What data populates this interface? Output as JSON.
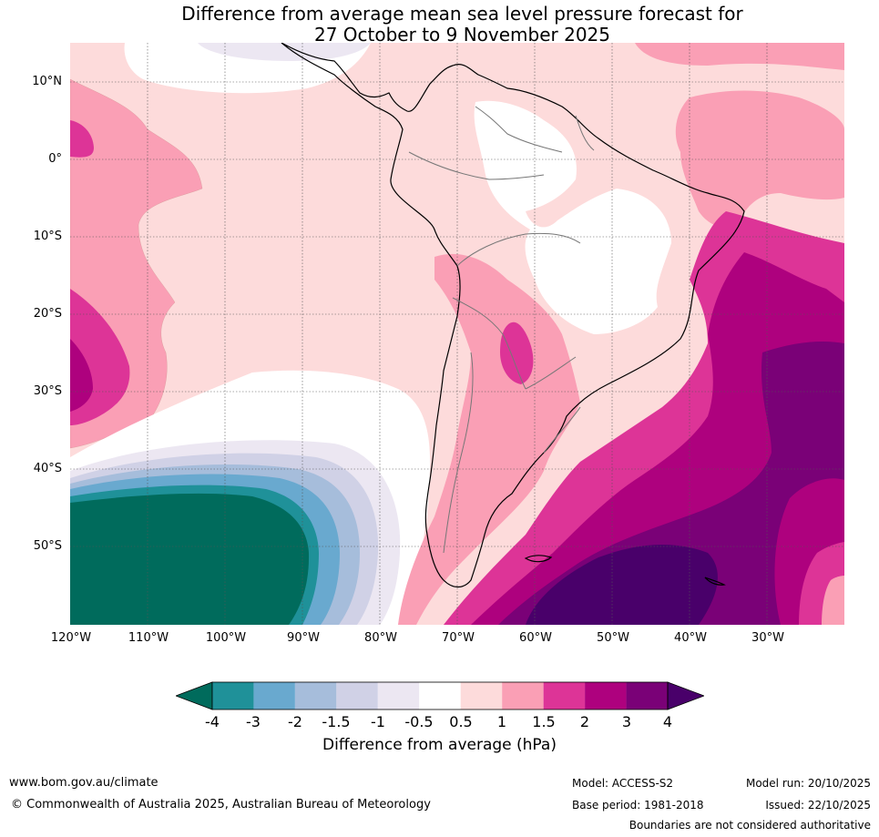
{
  "title": {
    "line1": "Difference from average mean sea level pressure forecast for",
    "line2": "27 October to 9 November 2025"
  },
  "map": {
    "latitude_labels": [
      "10°N",
      "0°",
      "10°S",
      "20°S",
      "30°S",
      "40°S",
      "50°S"
    ],
    "longitude_labels": [
      "120°W",
      "110°W",
      "100°W",
      "90°W",
      "80°W",
      "70°W",
      "60°W",
      "50°W",
      "40°W",
      "30°W"
    ]
  },
  "colorbar": {
    "ticks": [
      "-4",
      "-3",
      "-2",
      "-1.5",
      "-1",
      "-0.5",
      "0.5",
      "1",
      "1.5",
      "2",
      "3",
      "4"
    ],
    "label": "Difference from average (hPa)",
    "colors": [
      "#006b5c",
      "#1f9199",
      "#69a9cf",
      "#a6bddb",
      "#d0d1e6",
      "#ece7f2",
      "#ffffff",
      "#fddbdb",
      "#fa9fb5",
      "#dd3497",
      "#ae017e",
      "#7a0177",
      "#49006a"
    ]
  },
  "footer": {
    "website": "www.bom.gov.au/climate",
    "copyright": "© Commonwealth of Australia 2025, Australian Bureau of Meteorology",
    "model": "Model: ACCESS-S2",
    "base_period": "Base period: 1981-2018",
    "model_run": "Model run: 20/10/2025",
    "issued": "Issued: 22/10/2025",
    "disclaimer": "Boundaries are not considered authoritative"
  }
}
